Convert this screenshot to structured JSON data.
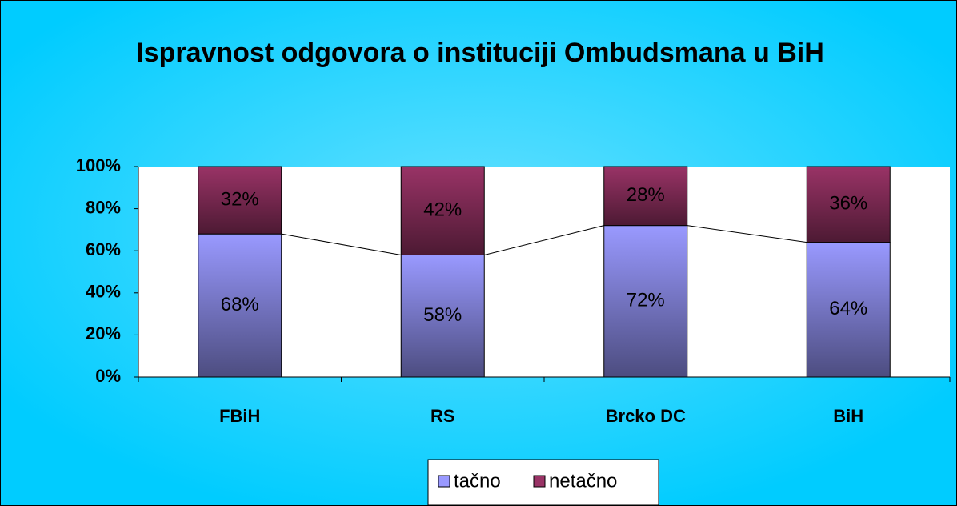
{
  "chart_data": {
    "type": "bar",
    "stacked": true,
    "title": "Ispravnost odgovora o instituciji Ombudsmana u BiH",
    "categories": [
      "FBiH",
      "RS",
      "Brcko DC",
      "BiH"
    ],
    "series": [
      {
        "name": "tačno",
        "color": "#9999ff",
        "values": [
          68,
          58,
          72,
          64
        ],
        "value_labels": [
          "68%",
          "58%",
          "72%",
          "64%"
        ]
      },
      {
        "name": "netačno",
        "color": "#993366",
        "values": [
          32,
          42,
          28,
          36
        ],
        "value_labels": [
          "32%",
          "42%",
          "28%",
          "36%"
        ]
      }
    ],
    "ylim": [
      0,
      100
    ],
    "yticks": [
      {
        "value": 0,
        "label": "0%"
      },
      {
        "value": 20,
        "label": "20%"
      },
      {
        "value": 40,
        "label": "40%"
      },
      {
        "value": 60,
        "label": "60%"
      },
      {
        "value": 80,
        "label": "80%"
      },
      {
        "value": 100,
        "label": "100%"
      }
    ],
    "legend": "bottom"
  }
}
